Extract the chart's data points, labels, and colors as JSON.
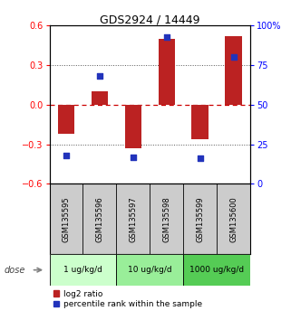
{
  "title": "GDS2924 / 14449",
  "samples": [
    "GSM135595",
    "GSM135596",
    "GSM135597",
    "GSM135598",
    "GSM135599",
    "GSM135600"
  ],
  "log2_ratio": [
    -0.22,
    0.1,
    -0.33,
    0.5,
    -0.26,
    0.52
  ],
  "percentile_rank": [
    18,
    68,
    17,
    93,
    16,
    80
  ],
  "dose_groups": [
    {
      "label": "1 ug/kg/d",
      "samples": [
        0,
        1
      ],
      "color": "#ccffcc"
    },
    {
      "label": "10 ug/kg/d",
      "samples": [
        2,
        3
      ],
      "color": "#99ee99"
    },
    {
      "label": "1000 ug/kg/d",
      "samples": [
        4,
        5
      ],
      "color": "#55cc55"
    }
  ],
  "bar_color": "#bb2222",
  "dot_color": "#2233bb",
  "bar_width": 0.5,
  "ylim_left": [
    -0.6,
    0.6
  ],
  "ylim_right": [
    0,
    100
  ],
  "yticks_left": [
    -0.6,
    -0.3,
    0.0,
    0.3,
    0.6
  ],
  "yticks_right": [
    0,
    25,
    50,
    75,
    100
  ],
  "hline_zero_color": "#cc0000",
  "hline_dotted_color": "#555555",
  "legend_red_label": "log2 ratio",
  "legend_blue_label": "percentile rank within the sample",
  "dose_label": "dose",
  "bg_color": "#ffffff",
  "sample_box_color": "#cccccc",
  "dose_label_color": "#444444"
}
